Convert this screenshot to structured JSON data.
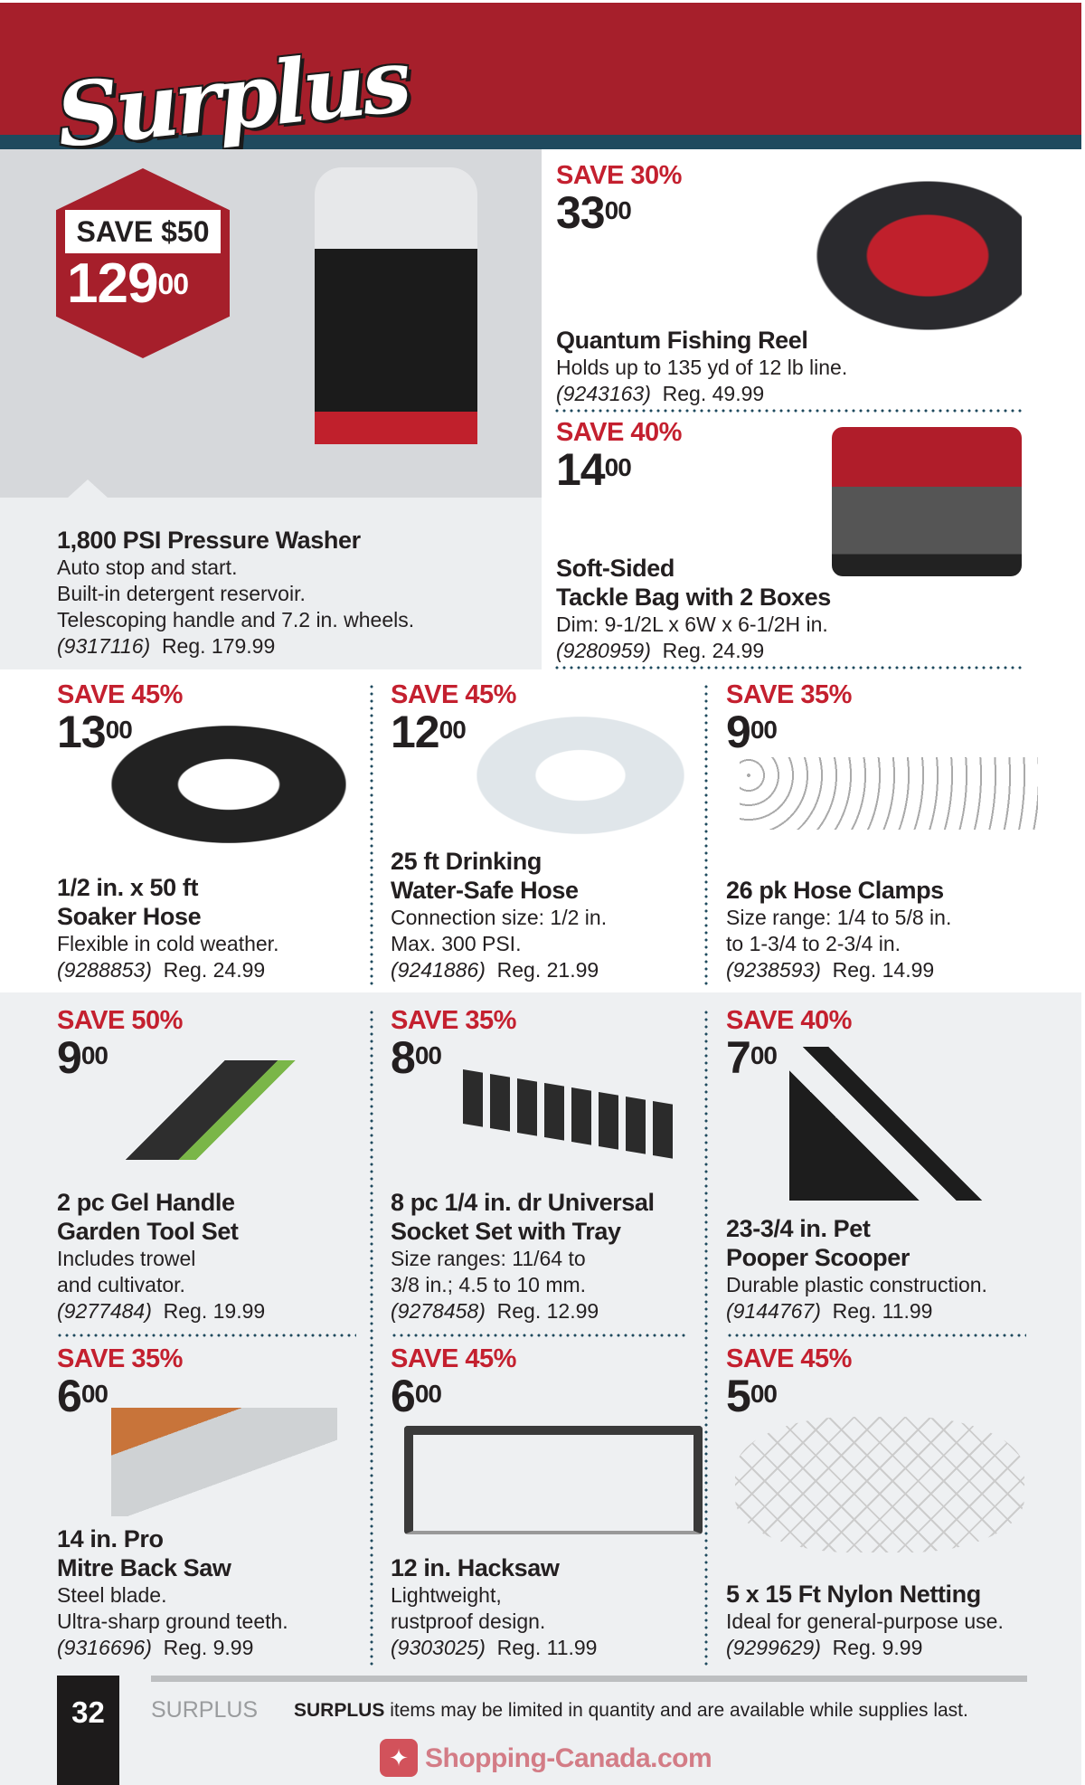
{
  "header": {
    "logo_text": "Surplus"
  },
  "colors": {
    "brand_red": "#a61f2b",
    "save_red": "#c4202f",
    "stripe_teal": "#1f4a5e"
  },
  "hero": {
    "badge_save": "SAVE $50",
    "badge_price_whole": "129",
    "badge_price_cents": "00"
  },
  "products": [
    {
      "id": "pressure-washer",
      "image": "pressure-washer-image",
      "save": "",
      "whole": "",
      "cents": "",
      "title": [
        "1,800 PSI Pressure Washer"
      ],
      "desc": [
        "Auto stop and start.",
        "Built-in detergent reservoir.",
        "Telescoping handle and 7.2 in. wheels."
      ],
      "sku": "(9317116)",
      "reg": "Reg. 179.99"
    },
    {
      "id": "fishing-reel",
      "image": "fishing-reel-image",
      "save": "SAVE 30%",
      "whole": "33",
      "cents": "00",
      "title": [
        "Quantum Fishing Reel"
      ],
      "desc": [
        "Holds up to 135 yd of 12 lb line."
      ],
      "sku": "(9243163)",
      "reg": "Reg. 49.99"
    },
    {
      "id": "tackle-bag",
      "image": "tackle-bag-image",
      "save": "SAVE 40%",
      "whole": "14",
      "cents": "00",
      "title": [
        "Soft-Sided",
        "Tackle Bag with 2 Boxes"
      ],
      "desc": [
        "Dim: 9-1/2L x 6W x 6-1/2H in."
      ],
      "sku": "(9280959)",
      "reg": "Reg. 24.99"
    },
    {
      "id": "soaker-hose",
      "image": "soaker-hose-image",
      "save": "SAVE 45%",
      "whole": "13",
      "cents": "00",
      "title": [
        "1/2 in. x 50 ft",
        "Soaker Hose"
      ],
      "desc": [
        "Flexible in cold weather."
      ],
      "sku": "(9288853)",
      "reg": "Reg. 24.99"
    },
    {
      "id": "drinking-hose",
      "image": "drinking-hose-image",
      "save": "SAVE 45%",
      "whole": "12",
      "cents": "00",
      "title": [
        "25 ft Drinking",
        "Water-Safe Hose"
      ],
      "desc": [
        "Connection size: 1/2 in.",
        "Max. 300 PSI."
      ],
      "sku": "(9241886)",
      "reg": "Reg. 21.99"
    },
    {
      "id": "hose-clamps",
      "image": "hose-clamps-image",
      "save": "SAVE 35%",
      "whole": "9",
      "cents": "00",
      "title": [
        "26 pk Hose Clamps"
      ],
      "desc": [
        "Size range: 1/4 to 5/8 in.",
        "to 1-3/4 to 2-3/4 in."
      ],
      "sku": "(9238593)",
      "reg": "Reg. 14.99"
    },
    {
      "id": "garden-tool-set",
      "image": "garden-tools-image",
      "save": "SAVE 50%",
      "whole": "9",
      "cents": "00",
      "title": [
        "2 pc Gel Handle",
        "Garden Tool Set"
      ],
      "desc": [
        "Includes trowel",
        "and cultivator."
      ],
      "sku": "(9277484)",
      "reg": "Reg. 19.99"
    },
    {
      "id": "socket-set",
      "image": "socket-set-image",
      "save": "SAVE 35%",
      "whole": "8",
      "cents": "00",
      "title": [
        "8 pc 1/4 in. dr Universal",
        "Socket Set with Tray"
      ],
      "desc": [
        "Size ranges: 11/64 to",
        "3/8 in.; 4.5 to 10 mm."
      ],
      "sku": "(9278458)",
      "reg": "Reg. 12.99"
    },
    {
      "id": "pooper-scooper",
      "image": "pooper-scooper-image",
      "save": "SAVE 40%",
      "whole": "7",
      "cents": "00",
      "title": [
        "23-3/4 in. Pet",
        "Pooper Scooper"
      ],
      "desc": [
        "Durable plastic construction."
      ],
      "sku": "(9144767)",
      "reg": "Reg. 11.99"
    },
    {
      "id": "mitre-saw",
      "image": "mitre-saw-image",
      "save": "SAVE 35%",
      "whole": "6",
      "cents": "00",
      "title": [
        "14 in. Pro",
        "Mitre Back Saw"
      ],
      "desc": [
        "Steel blade.",
        "Ultra-sharp ground teeth."
      ],
      "sku": "(9316696)",
      "reg": "Reg. 9.99"
    },
    {
      "id": "hacksaw",
      "image": "hacksaw-image",
      "save": "SAVE 45%",
      "whole": "6",
      "cents": "00",
      "title": [
        "12 in. Hacksaw"
      ],
      "desc": [
        "Lightweight,",
        "rustproof design."
      ],
      "sku": "(9303025)",
      "reg": "Reg. 11.99"
    },
    {
      "id": "nylon-netting",
      "image": "netting-image",
      "save": "SAVE 45%",
      "whole": "5",
      "cents": "00",
      "title": [
        "5 x 15 Ft Nylon Netting"
      ],
      "desc": [
        "Ideal for general-purpose use."
      ],
      "sku": "(9299629)",
      "reg": "Reg. 9.99"
    }
  ],
  "footer": {
    "page_number": "32",
    "section": "SURPLUS",
    "note_bold": "SURPLUS",
    "note_rest": " items may be limited in quantity and are available while supplies last."
  },
  "watermark": {
    "text": "Shopping-Canada.com"
  }
}
